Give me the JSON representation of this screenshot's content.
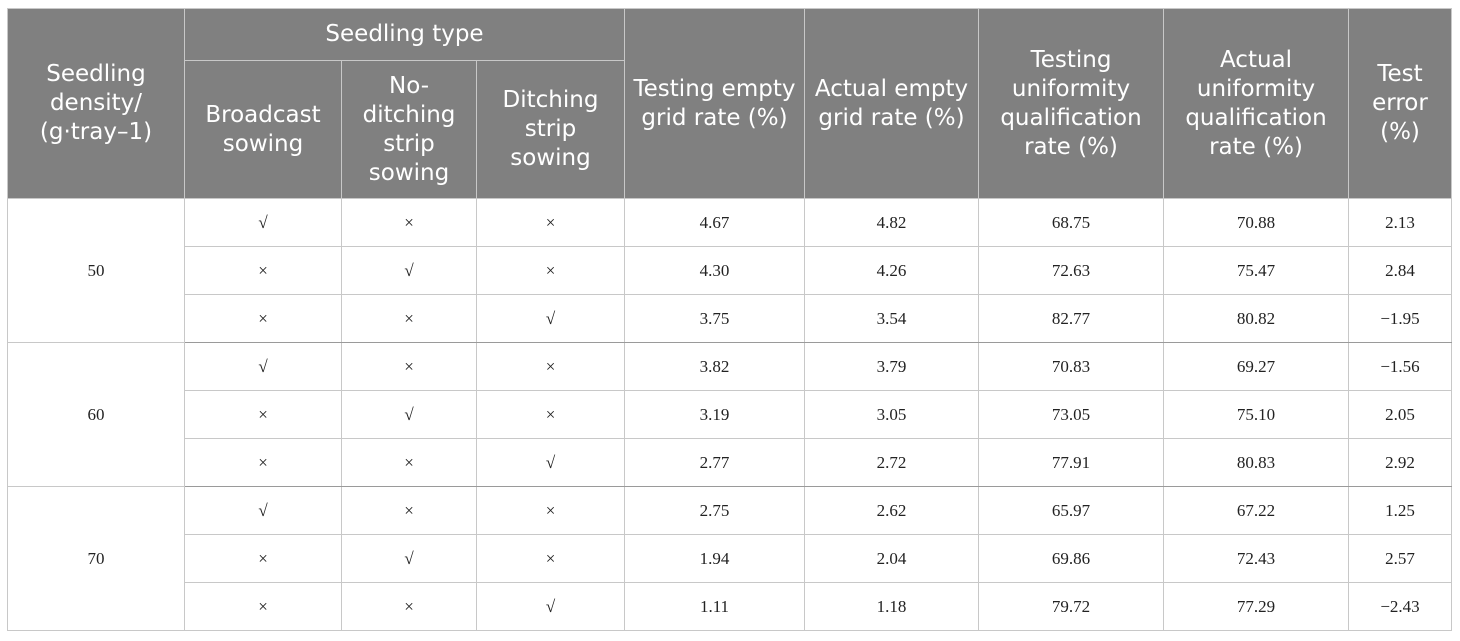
{
  "headers": {
    "density": "Seedling density/ (g·tray–1)",
    "seedling_type": "Seedling type",
    "broadcast": "Broadcast sowing",
    "no_ditching": "No-ditching strip sowing",
    "ditching": "Ditching strip sowing",
    "testing_empty": "Testing empty grid rate (%)",
    "actual_empty": "Actual empty grid rate (%)",
    "testing_uniform": "Testing uniformity qualification rate (%)",
    "actual_uniform": "Actual uniformity qualification rate (%)",
    "test_error": "Test error (%)"
  },
  "symbols": {
    "check": "√",
    "cross": "×"
  },
  "groups": [
    {
      "density": "50",
      "rows": [
        {
          "type": [
            "√",
            "×",
            "×"
          ],
          "testing_empty": "4.67",
          "actual_empty": "4.82",
          "testing_uniform": "68.75",
          "actual_uniform": "70.88",
          "error": "2.13"
        },
        {
          "type": [
            "×",
            "√",
            "×"
          ],
          "testing_empty": "4.30",
          "actual_empty": "4.26",
          "testing_uniform": "72.63",
          "actual_uniform": "75.47",
          "error": "2.84"
        },
        {
          "type": [
            "×",
            "×",
            "√"
          ],
          "testing_empty": "3.75",
          "actual_empty": "3.54",
          "testing_uniform": "82.77",
          "actual_uniform": "80.82",
          "error": "−1.95"
        }
      ]
    },
    {
      "density": "60",
      "rows": [
        {
          "type": [
            "√",
            "×",
            "×"
          ],
          "testing_empty": "3.82",
          "actual_empty": "3.79",
          "testing_uniform": "70.83",
          "actual_uniform": "69.27",
          "error": "−1.56"
        },
        {
          "type": [
            "×",
            "√",
            "×"
          ],
          "testing_empty": "3.19",
          "actual_empty": "3.05",
          "testing_uniform": "73.05",
          "actual_uniform": "75.10",
          "error": "2.05"
        },
        {
          "type": [
            "×",
            "×",
            "√"
          ],
          "testing_empty": "2.77",
          "actual_empty": "2.72",
          "testing_uniform": "77.91",
          "actual_uniform": "80.83",
          "error": "2.92"
        }
      ]
    },
    {
      "density": "70",
      "rows": [
        {
          "type": [
            "√",
            "×",
            "×"
          ],
          "testing_empty": "2.75",
          "actual_empty": "2.62",
          "testing_uniform": "65.97",
          "actual_uniform": "67.22",
          "error": "1.25"
        },
        {
          "type": [
            "×",
            "√",
            "×"
          ],
          "testing_empty": "1.94",
          "actual_empty": "2.04",
          "testing_uniform": "69.86",
          "actual_uniform": "72.43",
          "error": "2.57"
        },
        {
          "type": [
            "×",
            "×",
            "√"
          ],
          "testing_empty": "1.11",
          "actual_empty": "1.18",
          "testing_uniform": "79.72",
          "actual_uniform": "77.29",
          "error": "−2.43"
        }
      ]
    }
  ]
}
